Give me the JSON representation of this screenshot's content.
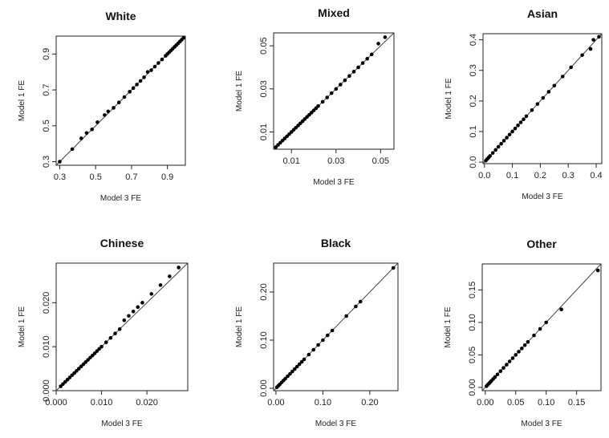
{
  "chart_data": [
    {
      "type": "scatter",
      "title": "White",
      "xlabel": "Model 3 FE",
      "ylabel": "Model 1 FE",
      "xlim": [
        0.28,
        1.0
      ],
      "ylim": [
        0.28,
        1.0
      ],
      "xticks": [
        "0.3",
        "0.5",
        "0.7",
        "0.9"
      ],
      "yticks": [
        "0.3",
        "0.5",
        "0.7",
        "0.9"
      ],
      "tick_values": [
        0.3,
        0.5,
        0.7,
        0.9
      ],
      "reference_line": "y = x",
      "points": [
        [
          0.3,
          0.3
        ],
        [
          0.37,
          0.37
        ],
        [
          0.42,
          0.43
        ],
        [
          0.45,
          0.46
        ],
        [
          0.48,
          0.48
        ],
        [
          0.51,
          0.52
        ],
        [
          0.55,
          0.56
        ],
        [
          0.57,
          0.58
        ],
        [
          0.6,
          0.6
        ],
        [
          0.63,
          0.63
        ],
        [
          0.66,
          0.66
        ],
        [
          0.69,
          0.69
        ],
        [
          0.71,
          0.71
        ],
        [
          0.73,
          0.73
        ],
        [
          0.75,
          0.75
        ],
        [
          0.77,
          0.77
        ],
        [
          0.79,
          0.8
        ],
        [
          0.81,
          0.81
        ],
        [
          0.83,
          0.83
        ],
        [
          0.85,
          0.85
        ],
        [
          0.87,
          0.87
        ],
        [
          0.89,
          0.89
        ],
        [
          0.9,
          0.9
        ],
        [
          0.91,
          0.91
        ],
        [
          0.92,
          0.92
        ],
        [
          0.93,
          0.93
        ],
        [
          0.94,
          0.94
        ],
        [
          0.95,
          0.95
        ],
        [
          0.96,
          0.96
        ],
        [
          0.97,
          0.97
        ],
        [
          0.98,
          0.98
        ],
        [
          0.99,
          0.99
        ]
      ]
    },
    {
      "type": "scatter",
      "title": "Mixed",
      "xlabel": "Model 3 FE",
      "ylabel": "Model 1 FE",
      "xlim": [
        0.002,
        0.056
      ],
      "ylim": [
        0.002,
        0.056
      ],
      "xticks": [
        "0.01",
        "0.03",
        "0.05"
      ],
      "yticks": [
        "0.01",
        "0.03",
        "0.05"
      ],
      "tick_values": [
        0.01,
        0.03,
        0.05
      ],
      "reference_line": "y = x",
      "points": [
        [
          0.003,
          0.003
        ],
        [
          0.004,
          0.004
        ],
        [
          0.005,
          0.005
        ],
        [
          0.006,
          0.006
        ],
        [
          0.007,
          0.007
        ],
        [
          0.008,
          0.008
        ],
        [
          0.009,
          0.009
        ],
        [
          0.01,
          0.01
        ],
        [
          0.011,
          0.011
        ],
        [
          0.012,
          0.012
        ],
        [
          0.013,
          0.013
        ],
        [
          0.014,
          0.014
        ],
        [
          0.015,
          0.015
        ],
        [
          0.016,
          0.016
        ],
        [
          0.017,
          0.017
        ],
        [
          0.018,
          0.018
        ],
        [
          0.019,
          0.019
        ],
        [
          0.02,
          0.02
        ],
        [
          0.021,
          0.021
        ],
        [
          0.022,
          0.022
        ],
        [
          0.024,
          0.024
        ],
        [
          0.026,
          0.026
        ],
        [
          0.028,
          0.028
        ],
        [
          0.03,
          0.03
        ],
        [
          0.032,
          0.032
        ],
        [
          0.034,
          0.034
        ],
        [
          0.036,
          0.036
        ],
        [
          0.038,
          0.038
        ],
        [
          0.04,
          0.04
        ],
        [
          0.042,
          0.042
        ],
        [
          0.044,
          0.044
        ],
        [
          0.046,
          0.046
        ],
        [
          0.049,
          0.051
        ],
        [
          0.052,
          0.054
        ]
      ]
    },
    {
      "type": "scatter",
      "title": "Asian",
      "xlabel": "Model 3 FE",
      "ylabel": "Model 1 FE",
      "xlim": [
        -0.005,
        0.42
      ],
      "ylim": [
        -0.005,
        0.42
      ],
      "xticks": [
        "0.0",
        "0.1",
        "0.2",
        "0.3",
        "0.4"
      ],
      "yticks": [
        "0.0",
        "0.1",
        "0.2",
        "0.3",
        "0.4"
      ],
      "tick_values": [
        0.0,
        0.1,
        0.2,
        0.3,
        0.4
      ],
      "reference_line": "y = x",
      "points": [
        [
          0.005,
          0.005
        ],
        [
          0.01,
          0.01
        ],
        [
          0.015,
          0.015
        ],
        [
          0.02,
          0.02
        ],
        [
          0.03,
          0.03
        ],
        [
          0.04,
          0.04
        ],
        [
          0.05,
          0.05
        ],
        [
          0.06,
          0.06
        ],
        [
          0.07,
          0.07
        ],
        [
          0.08,
          0.08
        ],
        [
          0.09,
          0.09
        ],
        [
          0.1,
          0.1
        ],
        [
          0.11,
          0.11
        ],
        [
          0.12,
          0.12
        ],
        [
          0.13,
          0.13
        ],
        [
          0.14,
          0.14
        ],
        [
          0.15,
          0.15
        ],
        [
          0.17,
          0.17
        ],
        [
          0.19,
          0.19
        ],
        [
          0.21,
          0.21
        ],
        [
          0.23,
          0.23
        ],
        [
          0.25,
          0.25
        ],
        [
          0.28,
          0.28
        ],
        [
          0.31,
          0.31
        ],
        [
          0.35,
          0.35
        ],
        [
          0.38,
          0.37
        ],
        [
          0.39,
          0.4
        ],
        [
          0.41,
          0.41
        ]
      ]
    },
    {
      "type": "scatter",
      "title": "Chinese",
      "xlabel": "Model 3 FE",
      "ylabel": "Model 1 FE",
      "xlim": [
        0.0,
        0.029
      ],
      "ylim": [
        0.0,
        0.029
      ],
      "xticks": [
        "0.000",
        "0.010",
        "0.020"
      ],
      "yticks": [
        "0.000",
        "0.010",
        "0.020"
      ],
      "tick_values": [
        0.0,
        0.01,
        0.02
      ],
      "reference_line": "y = x",
      "points": [
        [
          0.001,
          0.001
        ],
        [
          0.0015,
          0.0015
        ],
        [
          0.002,
          0.002
        ],
        [
          0.0025,
          0.0025
        ],
        [
          0.003,
          0.003
        ],
        [
          0.0035,
          0.0035
        ],
        [
          0.004,
          0.004
        ],
        [
          0.0045,
          0.0045
        ],
        [
          0.005,
          0.005
        ],
        [
          0.0055,
          0.0055
        ],
        [
          0.006,
          0.006
        ],
        [
          0.0065,
          0.0065
        ],
        [
          0.007,
          0.007
        ],
        [
          0.0075,
          0.0075
        ],
        [
          0.008,
          0.008
        ],
        [
          0.0085,
          0.0085
        ],
        [
          0.009,
          0.009
        ],
        [
          0.0095,
          0.0095
        ],
        [
          0.01,
          0.01
        ],
        [
          0.011,
          0.011
        ],
        [
          0.012,
          0.012
        ],
        [
          0.013,
          0.013
        ],
        [
          0.014,
          0.014
        ],
        [
          0.015,
          0.016
        ],
        [
          0.016,
          0.017
        ],
        [
          0.017,
          0.018
        ],
        [
          0.018,
          0.019
        ],
        [
          0.019,
          0.02
        ],
        [
          0.021,
          0.022
        ],
        [
          0.023,
          0.024
        ],
        [
          0.025,
          0.026
        ],
        [
          0.027,
          0.028
        ]
      ]
    },
    {
      "type": "scatter",
      "title": "Black",
      "xlabel": "Model 3 FE",
      "ylabel": "Model 1 FE",
      "xlim": [
        -0.005,
        0.26
      ],
      "ylim": [
        -0.005,
        0.26
      ],
      "xticks": [
        "0.00",
        "0.10",
        "0.20"
      ],
      "yticks": [
        "0.00",
        "0.10",
        "0.20"
      ],
      "tick_values": [
        0.0,
        0.1,
        0.2
      ],
      "reference_line": "y = x",
      "points": [
        [
          0.002,
          0.002
        ],
        [
          0.005,
          0.005
        ],
        [
          0.008,
          0.008
        ],
        [
          0.012,
          0.012
        ],
        [
          0.016,
          0.016
        ],
        [
          0.02,
          0.02
        ],
        [
          0.025,
          0.025
        ],
        [
          0.03,
          0.03
        ],
        [
          0.035,
          0.035
        ],
        [
          0.04,
          0.04
        ],
        [
          0.045,
          0.045
        ],
        [
          0.05,
          0.05
        ],
        [
          0.055,
          0.055
        ],
        [
          0.06,
          0.06
        ],
        [
          0.07,
          0.07
        ],
        [
          0.08,
          0.08
        ],
        [
          0.09,
          0.09
        ],
        [
          0.1,
          0.1
        ],
        [
          0.11,
          0.11
        ],
        [
          0.12,
          0.12
        ],
        [
          0.15,
          0.15
        ],
        [
          0.17,
          0.17
        ],
        [
          0.18,
          0.18
        ],
        [
          0.25,
          0.25
        ]
      ]
    },
    {
      "type": "scatter",
      "title": "Other",
      "xlabel": "Model 3 FE",
      "ylabel": "Model 1 FE",
      "xlim": [
        -0.005,
        0.19
      ],
      "ylim": [
        -0.005,
        0.19
      ],
      "xticks": [
        "0.00",
        "0.05",
        "0.10",
        "0.15"
      ],
      "yticks": [
        "0.00",
        "0.05",
        "0.10",
        "0.15"
      ],
      "tick_values": [
        0.0,
        0.05,
        0.1,
        0.15
      ],
      "reference_line": "y = x",
      "points": [
        [
          0.002,
          0.002
        ],
        [
          0.004,
          0.004
        ],
        [
          0.006,
          0.006
        ],
        [
          0.008,
          0.008
        ],
        [
          0.01,
          0.01
        ],
        [
          0.013,
          0.013
        ],
        [
          0.016,
          0.016
        ],
        [
          0.02,
          0.02
        ],
        [
          0.025,
          0.025
        ],
        [
          0.03,
          0.03
        ],
        [
          0.035,
          0.035
        ],
        [
          0.04,
          0.04
        ],
        [
          0.045,
          0.045
        ],
        [
          0.05,
          0.05
        ],
        [
          0.055,
          0.055
        ],
        [
          0.06,
          0.06
        ],
        [
          0.065,
          0.065
        ],
        [
          0.07,
          0.07
        ],
        [
          0.08,
          0.08
        ],
        [
          0.09,
          0.09
        ],
        [
          0.1,
          0.1
        ],
        [
          0.125,
          0.12
        ],
        [
          0.185,
          0.18
        ]
      ]
    }
  ]
}
